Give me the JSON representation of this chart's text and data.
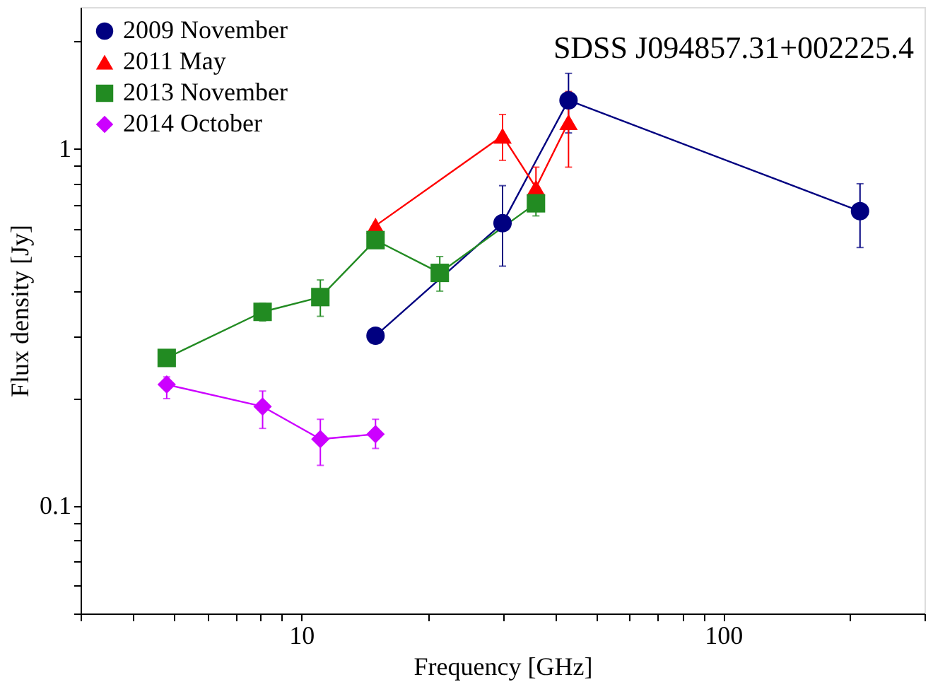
{
  "chart_data": {
    "type": "line",
    "title": "SDSS J094857.31+002225.4",
    "xlabel": "Frequency [GHz]",
    "ylabel": "Flux density [Jy]",
    "log": "xy",
    "grid": false,
    "legend": "top left",
    "xlim": [
      3,
      300
    ],
    "ylim": [
      0.05,
      2.5
    ],
    "xticks": [
      {
        "value": 3,
        "label": null
      },
      {
        "value": 4,
        "label": null
      },
      {
        "value": 5,
        "label": null
      },
      {
        "value": 6,
        "label": null
      },
      {
        "value": 7,
        "label": null
      },
      {
        "value": 8,
        "label": null
      },
      {
        "value": 9,
        "label": null
      },
      10,
      {
        "value": 20,
        "label": null
      },
      {
        "value": 30,
        "label": null
      },
      {
        "value": 40,
        "label": null
      },
      {
        "value": 50,
        "label": null
      },
      {
        "value": 60,
        "label": null
      },
      {
        "value": 70,
        "label": null
      },
      {
        "value": 80,
        "label": null
      },
      {
        "value": 90,
        "label": null
      },
      100,
      {
        "value": 200,
        "label": null
      },
      {
        "value": 300,
        "label": null
      }
    ],
    "yticks": [
      {
        "value": 0.05,
        "label": null
      },
      {
        "value": 0.06,
        "label": null
      },
      {
        "value": 0.07,
        "label": null
      },
      {
        "value": 0.08,
        "label": null
      },
      {
        "value": 0.09,
        "label": null
      },
      0.1,
      {
        "value": 0.2,
        "label": null
      },
      {
        "value": 0.3,
        "label": null
      },
      {
        "value": 0.4,
        "label": null
      },
      {
        "value": 0.5,
        "label": null
      },
      {
        "value": 0.6,
        "label": null
      },
      {
        "value": 0.7,
        "label": null
      },
      {
        "value": 0.8,
        "label": null
      },
      {
        "value": 0.9,
        "label": null
      },
      1,
      {
        "value": 2,
        "label": null
      }
    ],
    "series": [
      {
        "name": "2009 November",
        "color": "#000080",
        "marker": "circle",
        "line_style": "solid",
        "x": [
          15,
          30,
          43,
          211
        ],
        "values": [
          0.3,
          0.62,
          1.37,
          0.67
        ],
        "errors": [
          null,
          [
            0.47,
            0.79
          ],
          [
            1.11,
            1.63
          ],
          [
            0.53,
            0.8
          ]
        ]
      },
      {
        "name": "2011 May",
        "color": "#ff0000",
        "marker": "triangle",
        "line_style": "solid",
        "x": [
          15,
          30,
          36,
          43
        ],
        "values": [
          0.61,
          1.09,
          0.78,
          1.19
        ],
        "errors": [
          null,
          [
            0.93,
            1.25
          ],
          [
            0.68,
            0.89
          ],
          [
            0.89,
            1.45
          ]
        ]
      },
      {
        "name": "2013 November",
        "color": "#228b22",
        "marker": "square",
        "line_style": "solid",
        "x": [
          4.8,
          8.1,
          11.1,
          15,
          21.3,
          36
        ],
        "values": [
          0.26,
          0.35,
          0.385,
          0.556,
          0.45,
          0.705
        ],
        "errors": [
          null,
          [
            0.33,
            0.37
          ],
          [
            0.34,
            0.43
          ],
          null,
          [
            0.4,
            0.5
          ],
          [
            0.65,
            0.75
          ]
        ]
      },
      {
        "name": "2014 October",
        "color": "#cc00ff",
        "marker": "diamond",
        "line_style": "solid",
        "x": [
          4.8,
          8.1,
          11.1,
          15
        ],
        "values": [
          0.219,
          0.19,
          0.154,
          0.159
        ],
        "errors": [
          [
            0.2,
            0.23
          ],
          [
            0.165,
            0.21
          ],
          [
            0.13,
            0.175
          ],
          [
            0.145,
            0.175
          ]
        ]
      }
    ]
  }
}
